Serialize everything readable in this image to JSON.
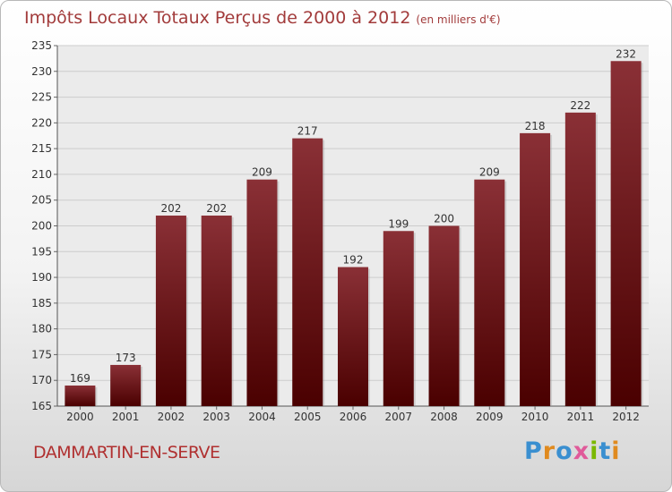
{
  "header": {
    "title": "Impôts Locaux Totaux Perçus de 2000 à 2012",
    "subtitle": "(en milliers d'€)"
  },
  "commune": "DAMMARTIN-EN-SERVE",
  "logo": {
    "text": "Proxiti",
    "letters": [
      "P",
      "r",
      "o",
      "x",
      "i",
      "t",
      "i"
    ],
    "colors": [
      "#3a8fd0",
      "#e08a1e",
      "#3a8fd0",
      "#e05a9a",
      "#7ab800",
      "#3a8fd0",
      "#e08a1e"
    ]
  },
  "colors": {
    "bar_top": "#8a3036",
    "bar_bottom": "#4a0000",
    "title": "#a23b3b",
    "grid": "#cccccc"
  },
  "chart_data": {
    "type": "bar",
    "title": "Impôts Locaux Totaux Perçus de 2000 à 2012",
    "subtitle": "(en milliers d'€)",
    "xlabel": "",
    "ylabel": "",
    "categories": [
      "2000",
      "2001",
      "2002",
      "2003",
      "2004",
      "2005",
      "2006",
      "2007",
      "2008",
      "2009",
      "2010",
      "2011",
      "2012"
    ],
    "values": [
      169,
      173,
      202,
      202,
      209,
      217,
      192,
      199,
      200,
      209,
      218,
      222,
      232
    ],
    "ylim": [
      165,
      235
    ],
    "yticks": [
      165,
      170,
      175,
      180,
      185,
      190,
      195,
      200,
      205,
      210,
      215,
      220,
      225,
      230,
      235
    ],
    "grid": true
  }
}
